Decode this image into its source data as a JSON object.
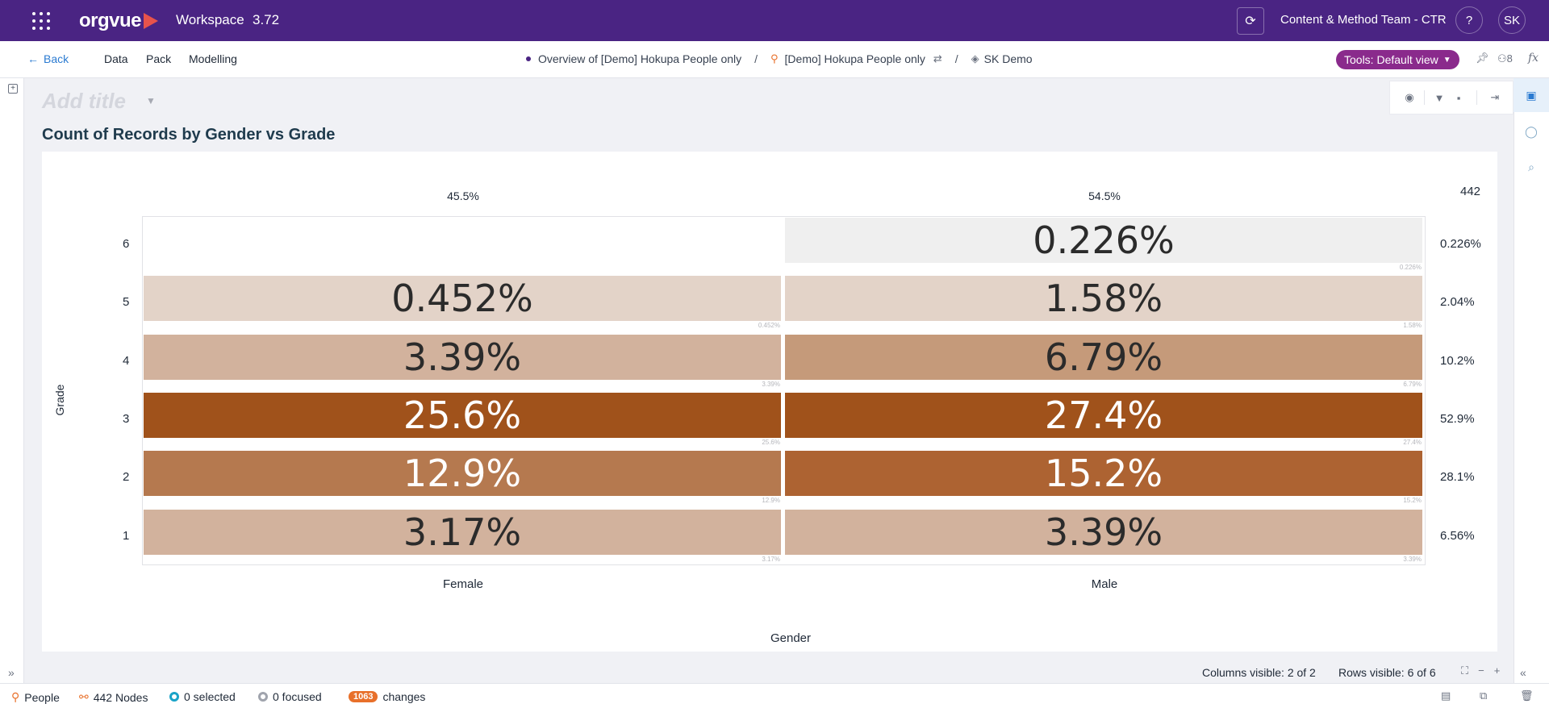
{
  "topbar": {
    "logo": "orgvue",
    "app_name": "Workspace",
    "version": "3.72",
    "team": "Content & Method Team - CTR",
    "help": "?",
    "avatar": "SK"
  },
  "subnav": {
    "back": "Back",
    "menu": [
      "Data",
      "Pack",
      "Modelling"
    ],
    "breadcrumb": {
      "view": "Overview of [Demo] Hokupa People only",
      "dataset": "[Demo] Hokupa People only",
      "workspace": "SK Demo"
    },
    "tools": "Tools: Default view",
    "users_count": "8",
    "fx": "fx"
  },
  "title": {
    "placeholder": "Add title",
    "chart_heading": "Count of Records by Gender vs Grade"
  },
  "chart_data": {
    "type": "heatmap",
    "title": "Count of Records by Gender vs Grade",
    "xlabel": "Gender",
    "ylabel": "Grade",
    "columns": [
      "Female",
      "Male"
    ],
    "column_totals": [
      "45.5%",
      "54.5%"
    ],
    "grand_total": "442",
    "rows": [
      {
        "grade": "6",
        "values": [
          null,
          "0.226%"
        ],
        "row_total": "0.226%"
      },
      {
        "grade": "5",
        "values": [
          "0.452%",
          "1.58%"
        ],
        "row_total": "2.04%"
      },
      {
        "grade": "4",
        "values": [
          "3.39%",
          "6.79%"
        ],
        "row_total": "10.2%"
      },
      {
        "grade": "3",
        "values": [
          "25.6%",
          "27.4%"
        ],
        "row_total": "52.9%"
      },
      {
        "grade": "2",
        "values": [
          "12.9%",
          "15.2%"
        ],
        "row_total": "28.1%"
      },
      {
        "grade": "1",
        "values": [
          "3.17%",
          "3.39%"
        ],
        "row_total": "6.56%"
      }
    ],
    "color_scale": [
      "#efefef",
      "#e3d3c8",
      "#c59a7a",
      "#a0521b"
    ]
  },
  "footer_info": {
    "columns_visible": "Columns visible: 2 of 2",
    "rows_visible": "Rows visible: 6 of 6"
  },
  "statusbar": {
    "people": "People",
    "nodes": "442 Nodes",
    "selected": "0 selected",
    "focused": "0 focused",
    "changes_count": "1063",
    "changes_label": "changes"
  }
}
